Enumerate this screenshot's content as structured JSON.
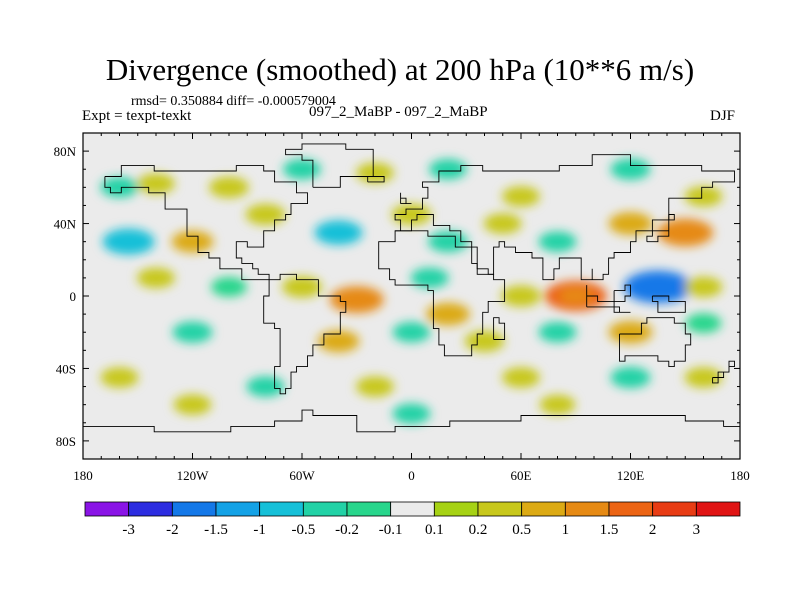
{
  "header": {
    "title": "Divergence (smoothed) at 200 hPa (10**6 m/s)",
    "stats": "rmsd= 0.350884 diff= -0.000579004",
    "expt": "Expt = texpt-texkt",
    "comparison": "097_2_MaBP - 097_2_MaBP",
    "season": "DJF"
  },
  "chart_data": {
    "type": "heatmap",
    "title": "Divergence (smoothed) at 200 hPa (10**6 m/s)",
    "xlabel": "",
    "ylabel": "",
    "xlim": [
      -180,
      180
    ],
    "ylim": [
      -90,
      90
    ],
    "x_ticks": [
      {
        "value": -180,
        "label": "180"
      },
      {
        "value": -120,
        "label": "120W"
      },
      {
        "value": -60,
        "label": "60W"
      },
      {
        "value": 0,
        "label": "0"
      },
      {
        "value": 60,
        "label": "60E"
      },
      {
        "value": 120,
        "label": "120E"
      },
      {
        "value": 180,
        "label": "180"
      }
    ],
    "y_ticks": [
      {
        "value": 80,
        "label": "80N"
      },
      {
        "value": 40,
        "label": "40N"
      },
      {
        "value": 0,
        "label": "0"
      },
      {
        "value": -40,
        "label": "40S"
      },
      {
        "value": -80,
        "label": "80S"
      }
    ],
    "colorbar": {
      "labels": [
        "-3",
        "-2",
        "-1.5",
        "-1",
        "-0.5",
        "-0.2",
        "-0.1",
        "0.1",
        "0.2",
        "0.5",
        "1",
        "1.5",
        "2",
        "3"
      ],
      "colors": [
        "#8a14e6",
        "#2c2ce0",
        "#1478e8",
        "#14a2e6",
        "#16c0d8",
        "#22d2a6",
        "#28d68c",
        "#ebebeb",
        "#a6d214",
        "#c8c81c",
        "#dcaa14",
        "#e68a14",
        "#ec6414",
        "#e83c14",
        "#e01414"
      ]
    },
    "features": [
      {
        "lon": -160,
        "lat": 60,
        "value": -0.3
      },
      {
        "lon": -140,
        "lat": 62,
        "value": 0.3
      },
      {
        "lon": -100,
        "lat": 60,
        "value": 0.4
      },
      {
        "lon": -60,
        "lat": 70,
        "value": -0.3
      },
      {
        "lon": -20,
        "lat": 68,
        "value": 0.3
      },
      {
        "lon": 20,
        "lat": 70,
        "value": -0.3
      },
      {
        "lon": 60,
        "lat": 55,
        "value": 0.3
      },
      {
        "lon": 120,
        "lat": 70,
        "value": -0.4
      },
      {
        "lon": 160,
        "lat": 55,
        "value": 0.3
      },
      {
        "lon": -155,
        "lat": 30,
        "value": -1.0
      },
      {
        "lon": -120,
        "lat": 30,
        "value": 0.5
      },
      {
        "lon": -80,
        "lat": 45,
        "value": 0.4
      },
      {
        "lon": -40,
        "lat": 35,
        "value": -0.8
      },
      {
        "lon": 0,
        "lat": 45,
        "value": 0.4
      },
      {
        "lon": 20,
        "lat": 30,
        "value": -0.4
      },
      {
        "lon": 50,
        "lat": 40,
        "value": 0.3
      },
      {
        "lon": 80,
        "lat": 30,
        "value": -0.3
      },
      {
        "lon": 120,
        "lat": 40,
        "value": 0.6
      },
      {
        "lon": 150,
        "lat": 35,
        "value": 1.2
      },
      {
        "lon": -140,
        "lat": 10,
        "value": 0.3
      },
      {
        "lon": -100,
        "lat": 5,
        "value": -0.2
      },
      {
        "lon": -60,
        "lat": 5,
        "value": 0.4
      },
      {
        "lon": -30,
        "lat": -2,
        "value": 1.1
      },
      {
        "lon": 10,
        "lat": 10,
        "value": -0.3
      },
      {
        "lon": 20,
        "lat": -10,
        "value": 0.6
      },
      {
        "lon": 60,
        "lat": 0,
        "value": 0.4
      },
      {
        "lon": 90,
        "lat": 0,
        "value": 1.5
      },
      {
        "lon": 135,
        "lat": 5,
        "value": -1.8
      },
      {
        "lon": 160,
        "lat": 5,
        "value": 0.3
      },
      {
        "lon": -120,
        "lat": -20,
        "value": -0.4
      },
      {
        "lon": -40,
        "lat": -25,
        "value": 0.5
      },
      {
        "lon": 0,
        "lat": -20,
        "value": -0.3
      },
      {
        "lon": 40,
        "lat": -25,
        "value": 0.4
      },
      {
        "lon": 80,
        "lat": -20,
        "value": -0.3
      },
      {
        "lon": 120,
        "lat": -20,
        "value": 0.6
      },
      {
        "lon": 160,
        "lat": -15,
        "value": -0.2
      },
      {
        "lon": -160,
        "lat": -45,
        "value": 0.3
      },
      {
        "lon": -80,
        "lat": -50,
        "value": -0.3
      },
      {
        "lon": -20,
        "lat": -50,
        "value": 0.3
      },
      {
        "lon": 60,
        "lat": -45,
        "value": 0.3
      },
      {
        "lon": 120,
        "lat": -45,
        "value": -0.4
      },
      {
        "lon": 160,
        "lat": -45,
        "value": 0.3
      },
      {
        "lon": -120,
        "lat": -60,
        "value": 0.3
      },
      {
        "lon": 0,
        "lat": -65,
        "value": -0.3
      },
      {
        "lon": 80,
        "lat": -60,
        "value": 0.2
      }
    ]
  }
}
